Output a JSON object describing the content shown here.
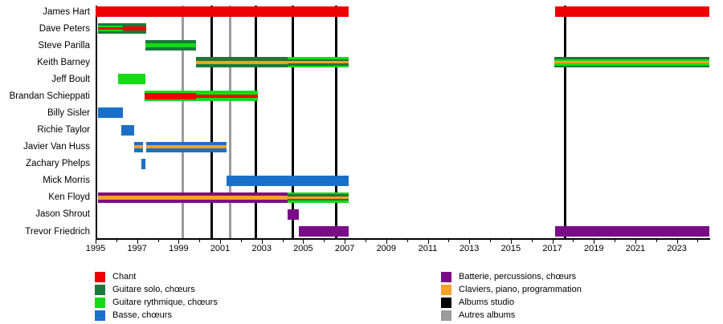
{
  "chart_data": {
    "type": "timeline-gantt",
    "title": "",
    "x_axis": {
      "min": 1995,
      "max": 2024.6,
      "labeled_ticks": [
        1995,
        1997,
        1999,
        2001,
        2003,
        2005,
        2007,
        2009,
        2011,
        2013,
        2015,
        2017,
        2019,
        2021,
        2023
      ],
      "minor_tick_every": 1,
      "grid": false
    },
    "rows": [
      {
        "name": "James Hart",
        "segments": [
          {
            "start": 1995.0,
            "end": 2007.2,
            "stripes": [
              "chant"
            ]
          },
          {
            "start": 2017.15,
            "end": 2024.55,
            "stripes": [
              "chant"
            ]
          }
        ]
      },
      {
        "name": "Dave Peters",
        "segments": [
          {
            "start": 1995.1,
            "end": 1996.3,
            "stripes": [
              "guitare_solo",
              "guitare_rythmique",
              "chant",
              "guitare_rythmique",
              "guitare_solo"
            ]
          },
          {
            "start": 1996.3,
            "end": 1997.45,
            "stripes": [
              "guitare_solo",
              "chant",
              "guitare_solo"
            ]
          }
        ]
      },
      {
        "name": "Steve Parilla",
        "segments": [
          {
            "start": 1997.4,
            "end": 1999.85,
            "stripes": [
              "guitare_solo",
              "guitare_rythmique",
              "guitare_solo"
            ]
          }
        ]
      },
      {
        "name": "Keith Barney",
        "segments": [
          {
            "start": 1999.85,
            "end": 2004.25,
            "stripes": [
              "guitare_solo",
              "claviers",
              "guitare_solo"
            ]
          },
          {
            "start": 2004.25,
            "end": 2007.2,
            "stripes": [
              "guitare_rythmique",
              "guitare_solo",
              "claviers",
              "guitare_solo",
              "guitare_rythmique"
            ]
          },
          {
            "start": 2017.1,
            "end": 2024.55,
            "stripes": [
              "guitare_solo",
              "guitare_rythmique",
              "claviers",
              "guitare_rythmique",
              "guitare_solo"
            ]
          }
        ]
      },
      {
        "name": "Jeff Boult",
        "segments": [
          {
            "start": 1996.1,
            "end": 1997.4,
            "stripes": [
              "guitare_rythmique"
            ]
          }
        ]
      },
      {
        "name": "Brandan Schieppati",
        "segments": [
          {
            "start": 1997.35,
            "end": 1999.85,
            "stripes": [
              "guitare_rythmique",
              "chant",
              "chant",
              "chant",
              "guitare_rythmique"
            ]
          },
          {
            "start": 1999.85,
            "end": 2002.8,
            "stripes": [
              "guitare_rythmique",
              "chant",
              "guitare_rythmique"
            ]
          }
        ]
      },
      {
        "name": "Billy Sisler",
        "segments": [
          {
            "start": 1995.1,
            "end": 1996.3,
            "stripes": [
              "basse"
            ]
          }
        ]
      },
      {
        "name": "Richie Taylor",
        "segments": [
          {
            "start": 1996.25,
            "end": 1996.85,
            "stripes": [
              "basse"
            ]
          }
        ]
      },
      {
        "name": "Javier Van Huss",
        "segments": [
          {
            "start": 1996.85,
            "end": 1997.3,
            "stripes": [
              "basse",
              "claviers",
              "basse"
            ]
          },
          {
            "start": 1997.45,
            "end": 2001.3,
            "stripes": [
              "basse",
              "claviers",
              "basse"
            ]
          }
        ]
      },
      {
        "name": "Zachary Phelps",
        "segments": [
          {
            "start": 1997.2,
            "end": 1997.4,
            "stripes": [
              "basse"
            ]
          }
        ]
      },
      {
        "name": "Mick Morris",
        "segments": [
          {
            "start": 2001.3,
            "end": 2007.2,
            "stripes": [
              "basse"
            ]
          }
        ]
      },
      {
        "name": "Ken Floyd",
        "segments": [
          {
            "start": 1995.1,
            "end": 2004.25,
            "stripes": [
              "batterie",
              "claviers",
              "batterie"
            ]
          },
          {
            "start": 2004.25,
            "end": 2007.2,
            "stripes": [
              "guitare_rythmique",
              "guitare_solo",
              "claviers",
              "guitare_solo",
              "guitare_rythmique"
            ]
          }
        ]
      },
      {
        "name": "Jason Shrout",
        "segments": [
          {
            "start": 2004.25,
            "end": 2004.8,
            "stripes": [
              "batterie"
            ]
          }
        ]
      },
      {
        "name": "Trevor Friedrich",
        "segments": [
          {
            "start": 2004.8,
            "end": 2007.2,
            "stripes": [
              "batterie"
            ]
          },
          {
            "start": 2017.15,
            "end": 2024.55,
            "stripes": [
              "batterie"
            ]
          }
        ]
      }
    ],
    "events": [
      {
        "year": 1999.2,
        "type": "autres_albums"
      },
      {
        "year": 2000.6,
        "type": "albums_studio"
      },
      {
        "year": 2001.5,
        "type": "autres_albums"
      },
      {
        "year": 2002.7,
        "type": "albums_studio"
      },
      {
        "year": 2004.5,
        "type": "albums_studio"
      },
      {
        "year": 2006.6,
        "type": "albums_studio"
      },
      {
        "year": 2017.6,
        "type": "albums_studio"
      }
    ],
    "legend": {
      "position": "bottom, two columns",
      "left_column": [
        {
          "role": "chant",
          "label": "Chant"
        },
        {
          "role": "guitare_solo",
          "label": "Guitare solo, chœurs"
        },
        {
          "role": "guitare_rythmique",
          "label": "Guitare rythmique, chœurs"
        },
        {
          "role": "basse",
          "label": "Basse, chœurs"
        }
      ],
      "right_column": [
        {
          "role": "batterie",
          "label": "Batterie, percussions, chœurs"
        },
        {
          "role": "claviers",
          "label": "Claviers, piano, programmation"
        },
        {
          "role": "albums_studio",
          "label": "Albums studio"
        },
        {
          "role": "autres_albums",
          "label": "Autres albums"
        }
      ]
    },
    "colors": {
      "chant": "#ee0101",
      "guitare_solo": "#177a3a",
      "guitare_rythmique": "#14dc14",
      "basse": "#1a6fc9",
      "batterie": "#7a0d87",
      "claviers": "#f7a226",
      "albums_studio": "#000000",
      "autres_albums": "#9b9b9b"
    }
  }
}
